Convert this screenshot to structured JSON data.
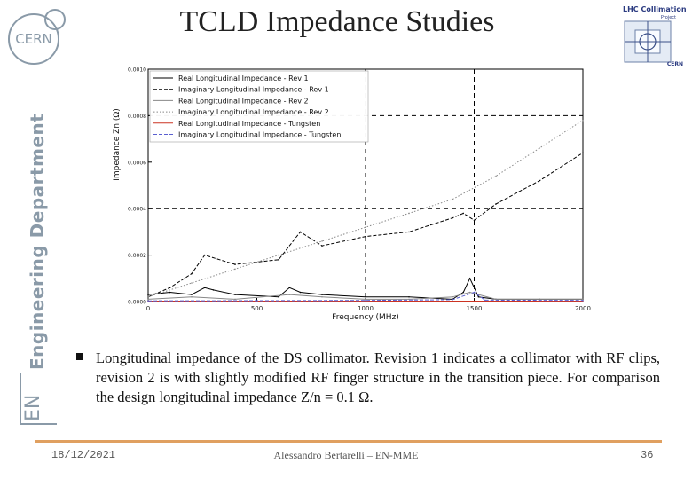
{
  "slide": {
    "title": "TCLD Impedance Studies",
    "department": "Engineering Department",
    "department_short": "EN",
    "bullet": "Longitudinal impedance of the DS collimator. Revision 1 indicates a collimator with RF clips, revision 2 is with slightly modified RF finger structure in the transition piece. For comparison the design longitudinal impedance Z/n = 0.1 Ω.",
    "footer": {
      "date": "18/12/2021",
      "author": "Alessandro Bertarelli – EN-MME",
      "page": "36"
    }
  },
  "logos": {
    "cern": "CERN",
    "lhc_line1": "LHC Collimation",
    "lhc_line2": "Project",
    "lhc_cern": "CERN"
  },
  "chart_data": {
    "type": "line",
    "xlabel": "Frequency (MHz)",
    "ylabel": "Impedance Zn (Ω)",
    "xlim": [
      0,
      2000
    ],
    "ylim": [
      0,
      0.001
    ],
    "xticks": [
      "0",
      "500",
      "1000",
      "1500",
      "2000"
    ],
    "yticks": [
      "0.0000",
      "0.0002",
      "0.0004",
      "0.0006",
      "0.0008",
      "0.0010"
    ],
    "vlines": [
      1000,
      1500
    ],
    "hlines": [
      0.0004,
      0.0008
    ],
    "legend_position": "top-right",
    "series": [
      {
        "name": "Real Longitudinal Impedance - Rev 1",
        "color": "#000000",
        "style": "solid",
        "x": [
          0,
          100,
          200,
          260,
          300,
          400,
          600,
          650,
          700,
          800,
          1000,
          1200,
          1400,
          1450,
          1480,
          1520,
          1600,
          1800,
          2000
        ],
        "y": [
          3e-05,
          4e-05,
          3e-05,
          6e-05,
          5e-05,
          3e-05,
          2e-05,
          6e-05,
          4e-05,
          3e-05,
          2e-05,
          2e-05,
          1e-05,
          4e-05,
          0.0001,
          2e-05,
          1e-05,
          1e-05,
          1e-05
        ]
      },
      {
        "name": "Imaginary Longitudinal Impedance - Rev 1",
        "color": "#000000",
        "style": "dashed",
        "x": [
          0,
          100,
          200,
          260,
          400,
          600,
          700,
          800,
          1000,
          1200,
          1400,
          1450,
          1500,
          1600,
          1800,
          2000
        ],
        "y": [
          2e-05,
          6e-05,
          0.00012,
          0.0002,
          0.00016,
          0.00018,
          0.0003,
          0.00024,
          0.00028,
          0.0003,
          0.00036,
          0.00038,
          0.00035,
          0.00042,
          0.00052,
          0.00064
        ]
      },
      {
        "name": "Real Longitudinal Impedance - Rev 2",
        "color": "#888888",
        "style": "solid",
        "x": [
          0,
          200,
          400,
          650,
          800,
          1000,
          1200,
          1400,
          1480,
          1600,
          2000
        ],
        "y": [
          1e-05,
          2e-05,
          1e-05,
          3e-05,
          2e-05,
          1e-05,
          1e-05,
          2e-05,
          4e-05,
          1e-05,
          1e-05
        ]
      },
      {
        "name": "Imaginary Longitudinal Impedance - Rev 2",
        "color": "#888888",
        "style": "dotted",
        "x": [
          0,
          200,
          400,
          600,
          800,
          1000,
          1200,
          1400,
          1600,
          1800,
          2000
        ],
        "y": [
          2e-05,
          8e-05,
          0.00014,
          0.0002,
          0.00026,
          0.00032,
          0.00038,
          0.00044,
          0.00054,
          0.00066,
          0.00078
        ]
      },
      {
        "name": "Real Longitudinal Impedance - Tungsten",
        "color": "#cc3322",
        "style": "solid",
        "x": [
          0,
          500,
          1000,
          1500,
          2000
        ],
        "y": [
          2e-06,
          2e-06,
          2e-06,
          2e-06,
          2e-06
        ]
      },
      {
        "name": "Imaginary Longitudinal Impedance - Tungsten",
        "color": "#5a5fd0",
        "style": "dashed",
        "x": [
          0,
          500,
          1000,
          1400,
          1500,
          1550,
          2000
        ],
        "y": [
          3e-06,
          4e-06,
          5e-06,
          8e-06,
          4e-05,
          6e-06,
          5e-06
        ]
      }
    ]
  }
}
